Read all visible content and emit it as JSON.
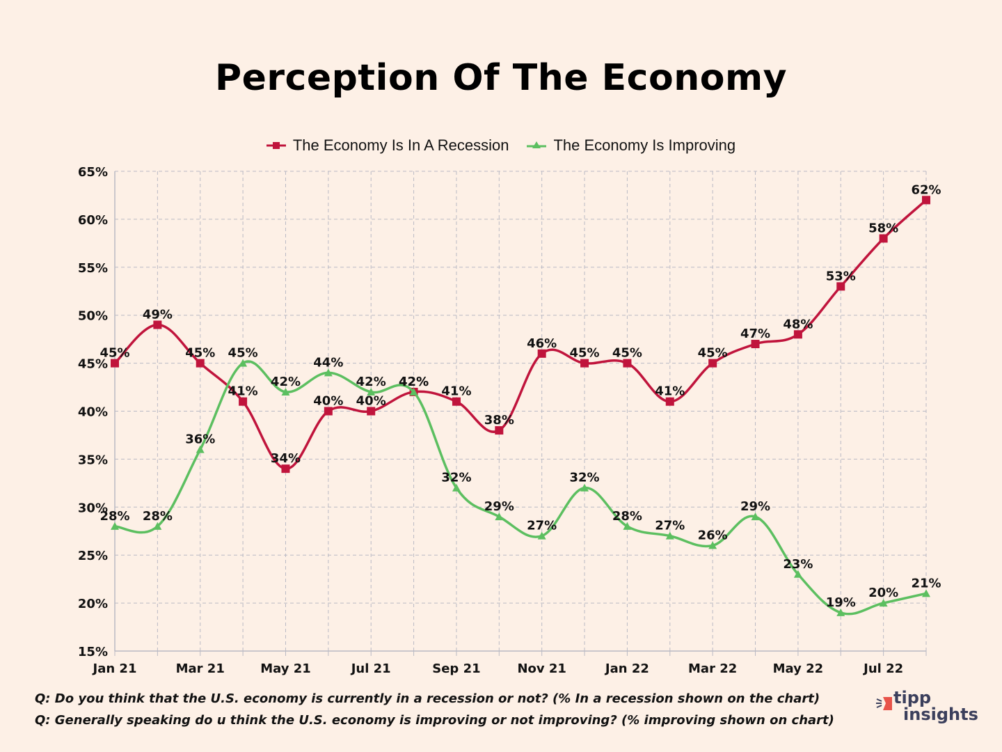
{
  "chart_data": {
    "type": "line",
    "title": "Perception Of The Economy",
    "xlabel": "",
    "ylabel": "",
    "ylim": [
      15,
      65
    ],
    "yticks": [
      "15%",
      "20%",
      "25%",
      "30%",
      "35%",
      "40%",
      "45%",
      "50%",
      "55%",
      "60%",
      "65%"
    ],
    "ytick_values": [
      15,
      20,
      25,
      30,
      35,
      40,
      45,
      50,
      55,
      60,
      65
    ],
    "x": [
      "Jan 21",
      "Feb 21",
      "Mar 21",
      "Apr 21",
      "May 21",
      "Jun 21",
      "Jul 21",
      "Aug 21",
      "Sep 21",
      "Oct 21",
      "Nov 21",
      "Dec 21",
      "Jan 22",
      "Feb 22",
      "Mar 22",
      "Apr 22",
      "May 22",
      "Jun 22",
      "Jul 22",
      "Aug 22"
    ],
    "xtick_labels": [
      "Jan 21",
      "",
      "Mar 21",
      "",
      "May 21",
      "",
      "Jul 21",
      "",
      "Sep 21",
      "",
      "Nov 21",
      "",
      "Jan 22",
      "",
      "Mar 22",
      "",
      "May 22",
      "",
      "Jul 22",
      ""
    ],
    "grid": true,
    "legend_position": "top-center",
    "series": [
      {
        "name": "The Economy Is In A Recession",
        "color": "#c0143c",
        "marker": "square",
        "values": [
          45,
          49,
          45,
          41,
          34,
          40,
          40,
          42,
          41,
          38,
          46,
          45,
          45,
          41,
          45,
          47,
          48,
          53,
          58,
          62
        ]
      },
      {
        "name": "The Economy Is Improving",
        "color": "#5cbf60",
        "marker": "triangle",
        "values": [
          28,
          28,
          36,
          45,
          42,
          44,
          42,
          42,
          32,
          29,
          27,
          32,
          28,
          27,
          26,
          29,
          23,
          19,
          20,
          21
        ]
      }
    ]
  },
  "footnotes": [
    "Q: Do you think that the U.S. economy is currently in a recession or not? (% In a recession shown on the chart)",
    "Q: Generally speaking do u think the U.S. economy is improving or not improving? (% improving shown on chart)"
  ],
  "logo": {
    "line1": "tipp",
    "line2": "insights",
    "accent_color": "#e8534a",
    "text_color": "#3b3f5c"
  }
}
